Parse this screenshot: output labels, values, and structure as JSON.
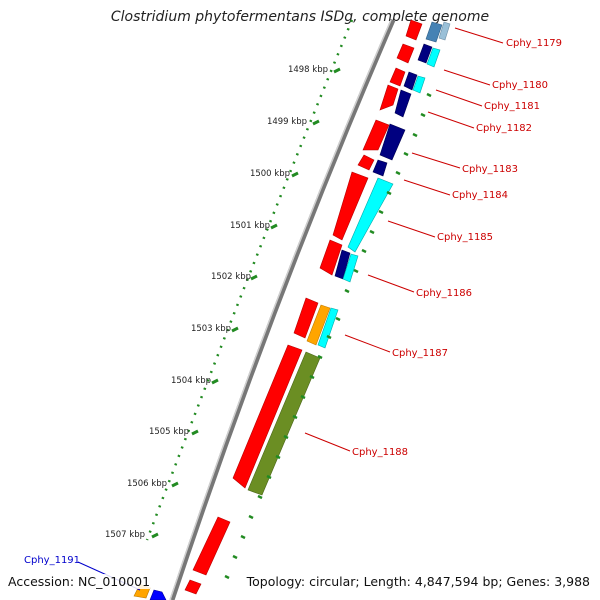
{
  "title": "Clostridium phytofermentans ISDg, complete genome",
  "accession": "Accession: NC_010001",
  "topology": "Topology: circular; Length: 4,847,594 bp; Genes: 3,988",
  "kbp_labels": [
    "1498 kbp",
    "1499 kbp",
    "1500 kbp",
    "1501 kbp",
    "1502 kbp",
    "1503 kbp",
    "1504 kbp",
    "1505 kbp",
    "1506 kbp",
    "1507 kbp"
  ],
  "gene_labels": [
    "Cphy_1179",
    "Cphy_1180",
    "Cphy_1181",
    "Cphy_1182",
    "Cphy_1183",
    "Cphy_1184",
    "Cphy_1185",
    "Cphy_1186",
    "Cphy_1187",
    "Cphy_1188",
    "Cphy_1191"
  ],
  "colors": {
    "label_red": "#cc0000",
    "label_blue": "#0000cc",
    "forward": "#ff0000",
    "cyan": "#00ffff",
    "navy": "#000080",
    "olive": "#6b8e23",
    "orange": "#ffa500",
    "tick_green": "#228b22",
    "backbone": "#888888"
  }
}
